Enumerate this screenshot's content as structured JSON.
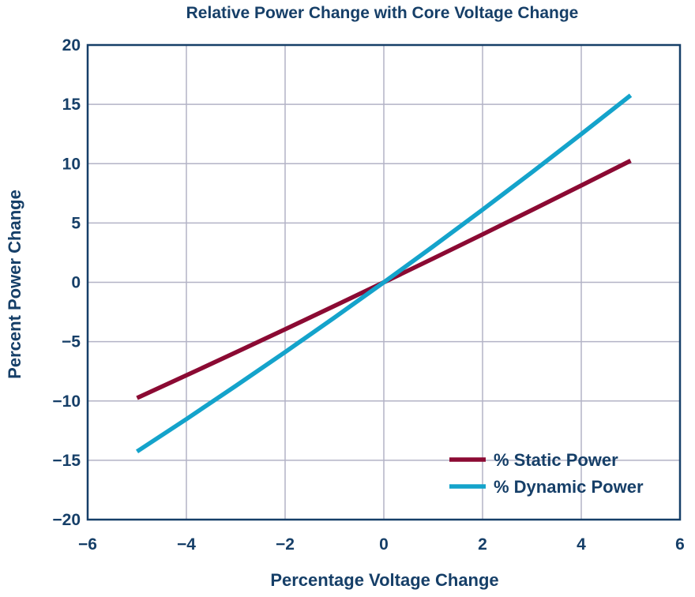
{
  "chart_data": {
    "type": "line",
    "title": "Relative Power Change with Core Voltage Change",
    "xlabel": "Percentage Voltage Change",
    "ylabel": "Percent Power Change",
    "xlim": [
      -6,
      6
    ],
    "ylim": [
      -20,
      20
    ],
    "xticks": [
      "−6",
      "−4",
      "−2",
      "0",
      "2",
      "4",
      "6"
    ],
    "yticks": [
      "20",
      "15",
      "10",
      "5",
      "0",
      "−5",
      "−10",
      "−15",
      "−20"
    ],
    "grid": true,
    "legend_position": "bottom-right",
    "series": [
      {
        "name": "% Static Power",
        "color": "#8b0a33",
        "x": [
          -5,
          -4,
          -3,
          -2,
          -1,
          0,
          1,
          2,
          3,
          4,
          5
        ],
        "y": [
          -9.75,
          -7.84,
          -5.91,
          -3.96,
          -1.99,
          0,
          2.01,
          4.04,
          6.09,
          8.16,
          10.25
        ]
      },
      {
        "name": "% Dynamic Power",
        "color": "#14a3cb",
        "x": [
          -5,
          -4,
          -3,
          -2,
          -1,
          0,
          1,
          2,
          3,
          4,
          5
        ],
        "y": [
          -14.26,
          -11.53,
          -8.73,
          -5.88,
          -2.97,
          0,
          3.03,
          6.12,
          9.27,
          12.49,
          15.76
        ]
      }
    ]
  },
  "colors": {
    "text": "#163f68",
    "axis_frame": "#163f68",
    "grid": "#b3b3c6"
  }
}
